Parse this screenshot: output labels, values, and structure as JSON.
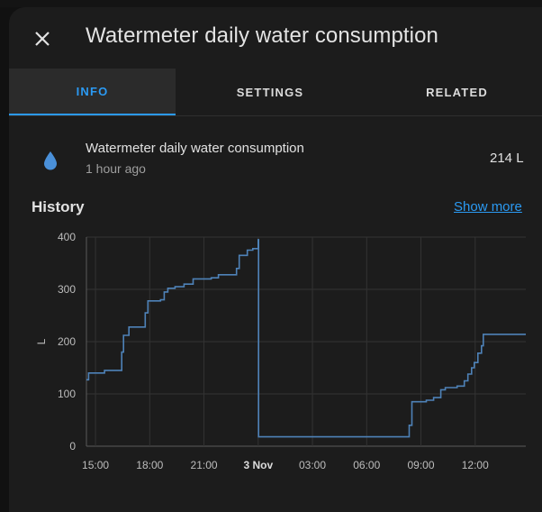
{
  "dialog": {
    "title": "Watermeter daily water consumption",
    "close_icon": "close-icon"
  },
  "tabs": [
    {
      "label": "INFO",
      "active": true
    },
    {
      "label": "SETTINGS",
      "active": false
    },
    {
      "label": "RELATED",
      "active": false
    }
  ],
  "entity": {
    "icon": "water-drop-icon",
    "icon_color": "#4a90d9",
    "name": "Watermeter daily water consumption",
    "last_changed": "1 hour ago",
    "state": "214 L"
  },
  "history": {
    "title": "History",
    "show_more": "Show more"
  },
  "colors": {
    "accent": "#2b9af3",
    "line": "#4e82b8"
  },
  "chart_data": {
    "type": "line",
    "title": "",
    "xlabel": "",
    "ylabel": "L",
    "ylim": [
      0,
      400
    ],
    "yticks": [
      0,
      100,
      200,
      300,
      400
    ],
    "xlim_hours": [
      14.5,
      38.8
    ],
    "xticks": [
      {
        "h": 15,
        "label": "15:00",
        "bold": false
      },
      {
        "h": 18,
        "label": "18:00",
        "bold": false
      },
      {
        "h": 21,
        "label": "21:00",
        "bold": false
      },
      {
        "h": 24,
        "label": "3 Nov",
        "bold": true
      },
      {
        "h": 27,
        "label": "03:00",
        "bold": false
      },
      {
        "h": 30,
        "label": "06:00",
        "bold": false
      },
      {
        "h": 33,
        "label": "09:00",
        "bold": false
      },
      {
        "h": 36,
        "label": "12:00",
        "bold": false
      }
    ],
    "series": [
      {
        "name": "Watermeter daily water consumption",
        "step": true,
        "points": [
          [
            14.5,
            127
          ],
          [
            14.62,
            140
          ],
          [
            15.1,
            140
          ],
          [
            15.5,
            145
          ],
          [
            16.3,
            145
          ],
          [
            16.45,
            180
          ],
          [
            16.55,
            212
          ],
          [
            16.7,
            212
          ],
          [
            16.85,
            228
          ],
          [
            17.5,
            228
          ],
          [
            17.75,
            255
          ],
          [
            17.9,
            278
          ],
          [
            18.6,
            280
          ],
          [
            18.8,
            295
          ],
          [
            19.0,
            302
          ],
          [
            19.4,
            305
          ],
          [
            19.9,
            310
          ],
          [
            20.4,
            320
          ],
          [
            21.4,
            322
          ],
          [
            21.8,
            328
          ],
          [
            22.8,
            340
          ],
          [
            22.95,
            365
          ],
          [
            23.4,
            375
          ],
          [
            23.7,
            378
          ],
          [
            24.0,
            395
          ],
          [
            24.02,
            18
          ],
          [
            32.2,
            18
          ],
          [
            32.35,
            40
          ],
          [
            32.5,
            85
          ],
          [
            33.3,
            88
          ],
          [
            33.7,
            93
          ],
          [
            34.1,
            108
          ],
          [
            34.35,
            112
          ],
          [
            35.0,
            115
          ],
          [
            35.4,
            125
          ],
          [
            35.6,
            138
          ],
          [
            35.8,
            150
          ],
          [
            35.95,
            160
          ],
          [
            36.15,
            178
          ],
          [
            36.35,
            192
          ],
          [
            36.45,
            214
          ],
          [
            38.8,
            214
          ]
        ]
      }
    ]
  }
}
